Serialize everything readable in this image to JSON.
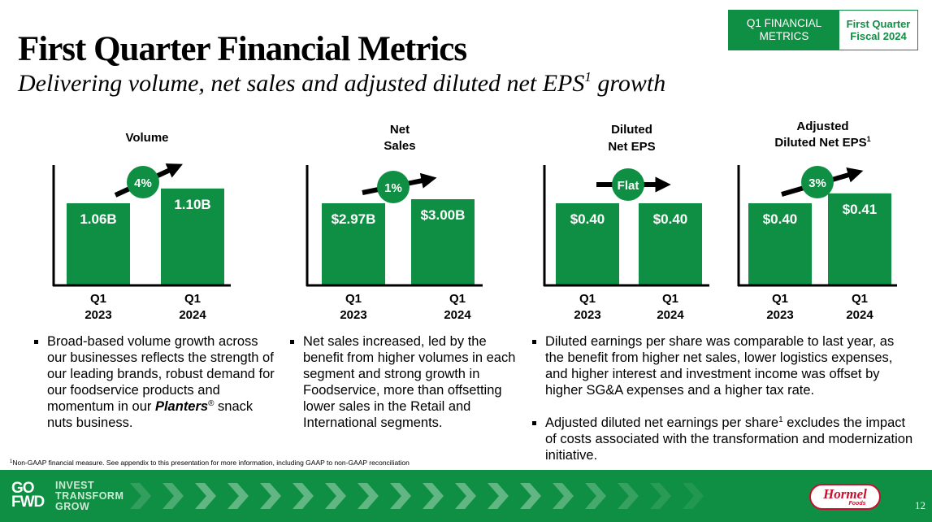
{
  "badge": {
    "section": "Q1 FINANCIAL METRICS",
    "period": "First Quarter Fiscal 2024"
  },
  "header": {
    "title": "First Quarter Financial Metrics",
    "subtitle": "Delivering volume, net sales and adjusted diluted net EPS",
    "subtitle_sup": "1",
    "subtitle_end": " growth"
  },
  "colors": {
    "green": "#0f8f43",
    "arrow": "#000000"
  },
  "chart_data": [
    {
      "type": "bar",
      "title": "Volume",
      "title_lines": [
        "Volume"
      ],
      "categories": [
        "Q1 2023",
        "Q1 2024"
      ],
      "category_lines": [
        [
          "Q1",
          "2023"
        ],
        [
          "Q1",
          "2024"
        ]
      ],
      "values": [
        1.06,
        1.1
      ],
      "unit": "B units",
      "data_labels": [
        "1.06B",
        "1.10B"
      ],
      "change_label": "4%",
      "trend": "up"
    },
    {
      "type": "bar",
      "title": "Net Sales",
      "title_lines": [
        "Net",
        "Sales"
      ],
      "categories": [
        "Q1 2023",
        "Q1 2024"
      ],
      "category_lines": [
        [
          "Q1",
          "2023"
        ],
        [
          "Q1",
          "2024"
        ]
      ],
      "values": [
        2.97,
        3.0
      ],
      "unit": "$B",
      "data_labels": [
        "$2.97B",
        "$3.00B"
      ],
      "change_label": "1%",
      "trend": "up"
    },
    {
      "type": "bar",
      "title": "Diluted Net EPS",
      "title_lines": [
        "Diluted",
        "Net EPS"
      ],
      "categories": [
        "Q1 2023",
        "Q1 2024"
      ],
      "category_lines": [
        [
          "Q1",
          "2023"
        ],
        [
          "Q1",
          "2024"
        ]
      ],
      "values": [
        0.4,
        0.4
      ],
      "unit": "$",
      "data_labels": [
        "$0.40",
        "$0.40"
      ],
      "change_label": "Flat",
      "trend": "flat"
    },
    {
      "type": "bar",
      "title": "Adjusted Diluted Net EPS1",
      "title_lines": [
        "Adjusted",
        "Diluted Net EPS"
      ],
      "title_sup": "1",
      "categories": [
        "Q1 2023",
        "Q1 2024"
      ],
      "category_lines": [
        [
          "Q1",
          "2023"
        ],
        [
          "Q1",
          "2024"
        ]
      ],
      "values": [
        0.4,
        0.41
      ],
      "unit": "$",
      "data_labels": [
        "$0.40",
        "$0.41"
      ],
      "change_label": "3%",
      "trend": "up"
    }
  ],
  "bullets": {
    "volume": {
      "text_before": "Broad-based volume growth across our businesses reflects the strength of our leading brands, robust demand for our foodservice products and momentum in our ",
      "brand": "Planters",
      "reg": "®",
      "text_after": " snack nuts business."
    },
    "net_sales": {
      "text": "Net sales increased, led by the benefit from higher volumes in each segment and strong growth in Foodservice, more than offsetting lower sales in the Retail and International segments."
    },
    "eps": [
      {
        "text": "Diluted earnings per share was comparable to last year, as the benefit from higher net sales, lower logistics expenses, and higher interest and investment income was offset by higher SG&A expenses and a higher tax rate."
      },
      {
        "text_before": "Adjusted diluted net earnings per share",
        "sup": "1",
        "text_after": " excludes the impact of costs associated with the transformation and modernization initiative."
      }
    ]
  },
  "footnote": {
    "sup": "1",
    "text": "Non-GAAP financial measure. See appendix to this presentation for more information, including GAAP to non-GAAP reconciliation"
  },
  "footer": {
    "gofwd_top": "GO",
    "gofwd_bottom": "FWD",
    "tagline": [
      "INVEST",
      "TRANSFORM",
      "GROW"
    ],
    "logo_main": "Hormel",
    "logo_sub": "Foods",
    "page_number": "12"
  }
}
